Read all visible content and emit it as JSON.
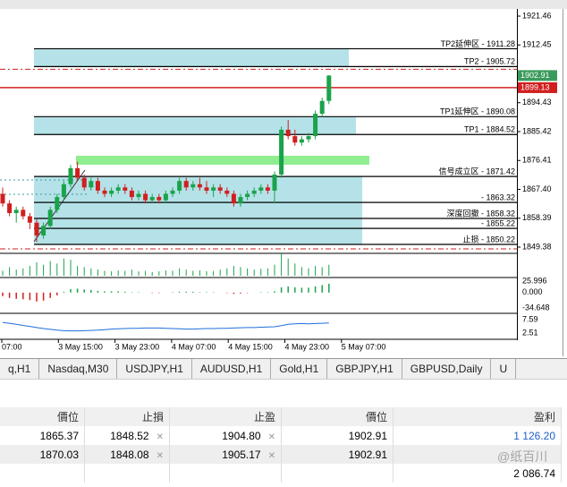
{
  "chart": {
    "price_ticks": [
      1921.46,
      1912.45,
      1894.43,
      1885.42,
      1876.41,
      {
        "value": 1867.4,
        "label": "1867.40"
      },
      1858.39,
      1849.38
    ],
    "price_badges": [
      {
        "label": "1902.91",
        "price": 1902.91,
        "color": "#3a9a5b"
      },
      {
        "label": "1899.13",
        "price": 1899.13,
        "color": "#d11f1f"
      }
    ],
    "levels": [
      {
        "label": "TP2延伸区 - 1911.28",
        "price": 1911.28
      },
      {
        "label": "TP2 - 1905.72",
        "price": 1905.72
      },
      {
        "label": "TP1延伸区 - 1890.08",
        "price": 1890.08
      },
      {
        "label": "TP1 - 1884.52",
        "price": 1884.52
      },
      {
        "label": "信号成立区 - 1871.42",
        "price": 1871.42
      },
      {
        "label": "- 1863.32",
        "price": 1863.32
      },
      {
        "label": "深度回撤 - 1858.32",
        "price": 1858.32
      },
      {
        "label": "- 1855.22",
        "price": 1855.22
      },
      {
        "label": "止损 - 1850.22",
        "price": 1850.22
      }
    ],
    "time_labels": [
      "07:00",
      "3 May 15:00",
      "3 May 23:00",
      "4 May 07:00",
      "4 May 15:00",
      "4 May 23:00",
      "5 May 07:00"
    ],
    "candles": {
      "open": [
        1866,
        1863,
        1860,
        1861,
        1859,
        1857,
        1853,
        1856,
        1861,
        1865,
        1869,
        1874,
        1871,
        1868,
        1870,
        1867,
        1866,
        1867,
        1868,
        1867,
        1865,
        1866,
        1864,
        1865,
        1864,
        1866,
        1867,
        1870,
        1868,
        1869,
        1868,
        1867,
        1868,
        1867,
        1866,
        1863,
        1865,
        1866,
        1867,
        1868,
        1867,
        1872,
        1886,
        1884,
        1882,
        1883,
        1884,
        1891,
        1895
      ],
      "high": [
        1868,
        1864,
        1862,
        1862,
        1860,
        1858,
        1857,
        1862,
        1866,
        1870,
        1875,
        1876,
        1872,
        1871,
        1871,
        1868,
        1868,
        1869,
        1869,
        1868,
        1867,
        1867,
        1866,
        1866,
        1867,
        1868,
        1871,
        1871,
        1870,
        1871,
        1870,
        1869,
        1869,
        1868,
        1867,
        1866,
        1867,
        1868,
        1869,
        1869,
        1873,
        1887,
        1889,
        1886,
        1884,
        1885,
        1892,
        1896,
        1903
      ],
      "low": [
        1862,
        1859,
        1857,
        1858,
        1855,
        1851,
        1852,
        1855,
        1860,
        1864,
        1868,
        1870,
        1867,
        1867,
        1866,
        1865,
        1865,
        1866,
        1866,
        1864,
        1864,
        1863,
        1863,
        1863,
        1863,
        1865,
        1866,
        1867,
        1867,
        1867,
        1866,
        1865,
        1866,
        1865,
        1862,
        1862,
        1864,
        1865,
        1866,
        1866,
        1863,
        1871,
        1883,
        1881,
        1881,
        1882,
        1883,
        1890,
        1894
      ],
      "close": [
        1863,
        1860,
        1861,
        1859,
        1857,
        1853,
        1856,
        1861,
        1865,
        1869,
        1874,
        1871,
        1868,
        1870,
        1867,
        1866,
        1867,
        1868,
        1867,
        1865,
        1866,
        1864,
        1865,
        1864,
        1866,
        1867,
        1870,
        1868,
        1869,
        1868,
        1867,
        1868,
        1867,
        1866,
        1863,
        1865,
        1866,
        1867,
        1868,
        1867,
        1872,
        1886,
        1884,
        1882,
        1883,
        1884,
        1891,
        1895,
        1902.91
      ]
    },
    "volume": [
      20,
      35,
      25,
      30,
      40,
      55,
      45,
      60,
      50,
      70,
      65,
      40,
      35,
      30,
      25,
      20,
      18,
      22,
      20,
      25,
      18,
      20,
      15,
      18,
      22,
      20,
      30,
      25,
      20,
      22,
      18,
      20,
      25,
      30,
      40,
      35,
      30,
      25,
      28,
      30,
      45,
      95,
      70,
      50,
      35,
      30,
      40,
      35,
      45
    ],
    "osc_ticks": [
      25.996,
      {
        "value": 0,
        "label": "0.000"
      },
      -34.648
    ],
    "osc": [
      -8,
      -12,
      -14,
      -15,
      -17,
      -20,
      -18,
      -12,
      -6,
      2,
      8,
      9,
      7,
      6,
      4,
      3,
      3,
      3,
      2,
      1,
      1,
      0,
      -1,
      -1,
      0,
      1,
      2,
      2,
      2,
      1,
      1,
      1,
      0,
      -1,
      -3,
      -2,
      -1,
      0,
      1,
      1,
      3,
      12,
      14,
      12,
      11,
      11,
      14,
      17,
      20
    ],
    "rsi_ticks": [
      7.59,
      2.51
    ],
    "rsi": [
      6.5,
      6.2,
      5.8,
      5.4,
      5.0,
      4.6,
      4.2,
      3.9,
      3.6,
      3.4,
      3.3,
      3.3,
      3.4,
      3.5,
      3.6,
      3.8,
      4.0,
      4.1,
      4.2,
      4.3,
      4.3,
      4.4,
      4.4,
      4.4,
      4.3,
      4.2,
      4.1,
      4.0,
      4.0,
      4.1,
      4.2,
      4.2,
      4.3,
      4.3,
      4.4,
      4.5,
      4.6,
      4.6,
      4.7,
      4.8,
      4.9,
      5.3,
      5.8,
      6.0,
      6.1,
      6.0,
      6.1,
      6.2,
      6.3
    ]
  },
  "tabs": [
    "q,H1",
    "Nasdaq,M30",
    "USDJPY,H1",
    "AUDUSD,H1",
    "Gold,H1",
    "GBPJPY,H1",
    "GBPUSD,Daily",
    "U"
  ],
  "table": {
    "header": [
      "價位",
      "止損",
      "止盈",
      "價位",
      "盈利"
    ],
    "rows": [
      [
        "1865.37",
        "1848.52",
        "1904.80",
        "1902.91",
        "1 126.20"
      ],
      [
        "1870.03",
        "1848.08",
        "1905.17",
        "1902.91"
      ]
    ],
    "total": "2 086.74"
  },
  "watermark": "@纸百川"
}
